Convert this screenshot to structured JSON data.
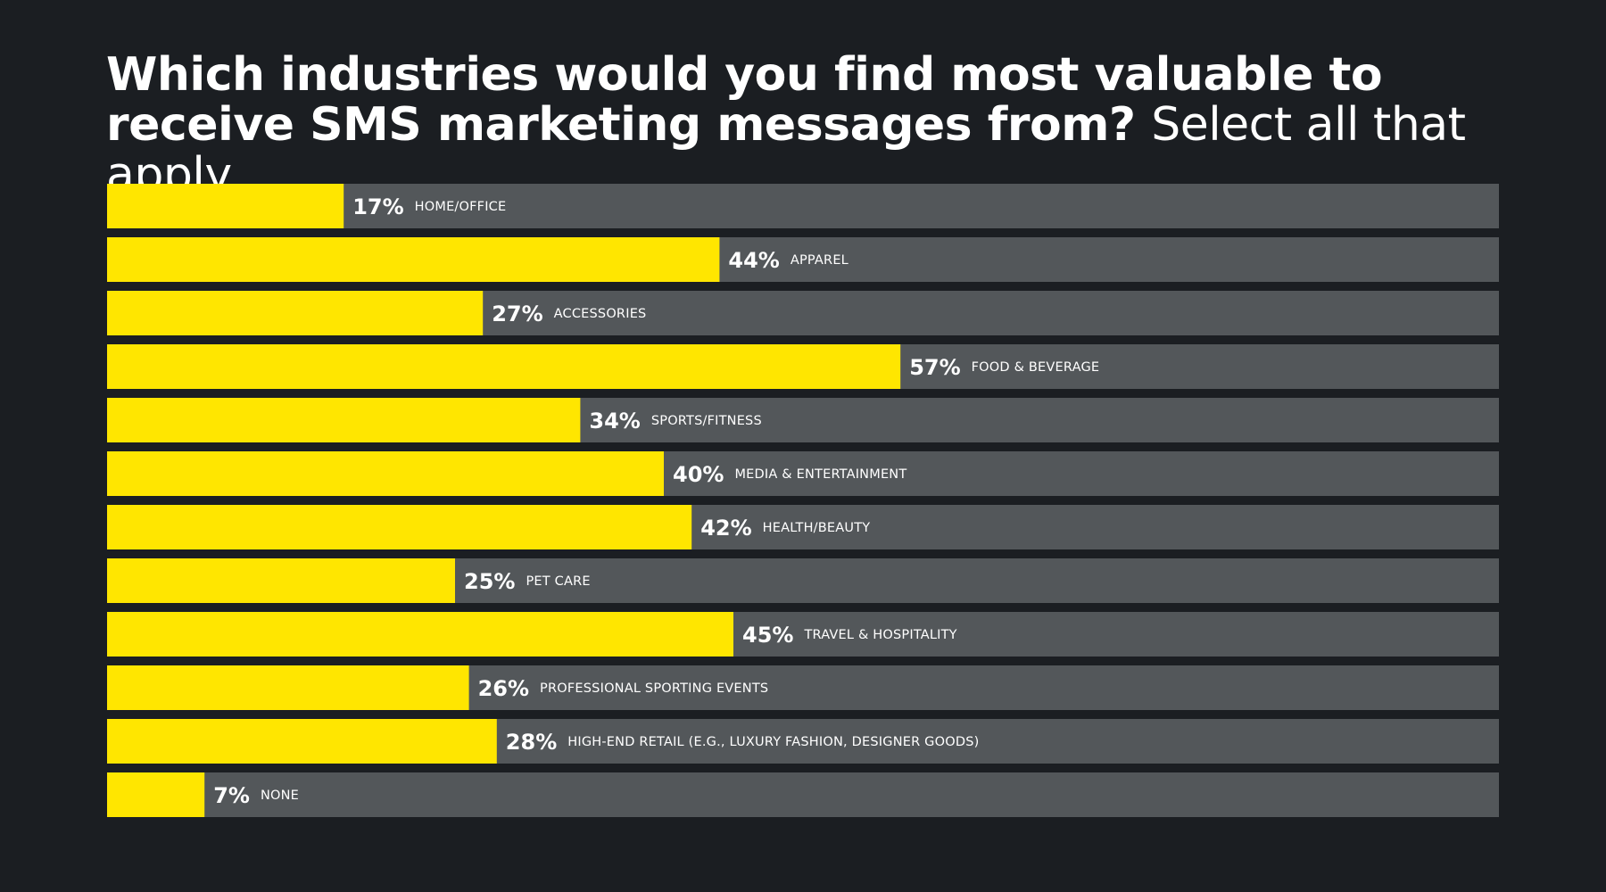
{
  "title": {
    "bold": "Which industries would you find most valuable to receive SMS marketing messages from?",
    "light": "Select all that apply"
  },
  "colors": {
    "background": "#1b1e22",
    "track": "#53575a",
    "bar": "#ffe600",
    "text": "#ffffff"
  },
  "chart_data": {
    "type": "bar",
    "orientation": "horizontal",
    "categories": [
      "HOME/OFFICE",
      "APPAREL",
      "ACCESSORIES",
      "FOOD & BEVERAGE",
      "SPORTS/FITNESS",
      "MEDIA & ENTERTAINMENT",
      "HEALTH/BEAUTY",
      "PET CARE",
      "TRAVEL & HOSPITALITY",
      "PROFESSIONAL SPORTING EVENTS",
      "HIGH-END RETAIL (E.G., LUXURY FASHION, DESIGNER GOODS)",
      "NONE"
    ],
    "values": [
      17,
      44,
      27,
      57,
      34,
      40,
      42,
      25,
      45,
      26,
      28,
      7
    ],
    "value_labels": [
      "17%",
      "44%",
      "27%",
      "57%",
      "34%",
      "40%",
      "42%",
      "25%",
      "45%",
      "26%",
      "28%",
      "7%"
    ],
    "xlim": [
      0,
      100
    ],
    "unit": "%",
    "grid": false,
    "legend": "none"
  }
}
